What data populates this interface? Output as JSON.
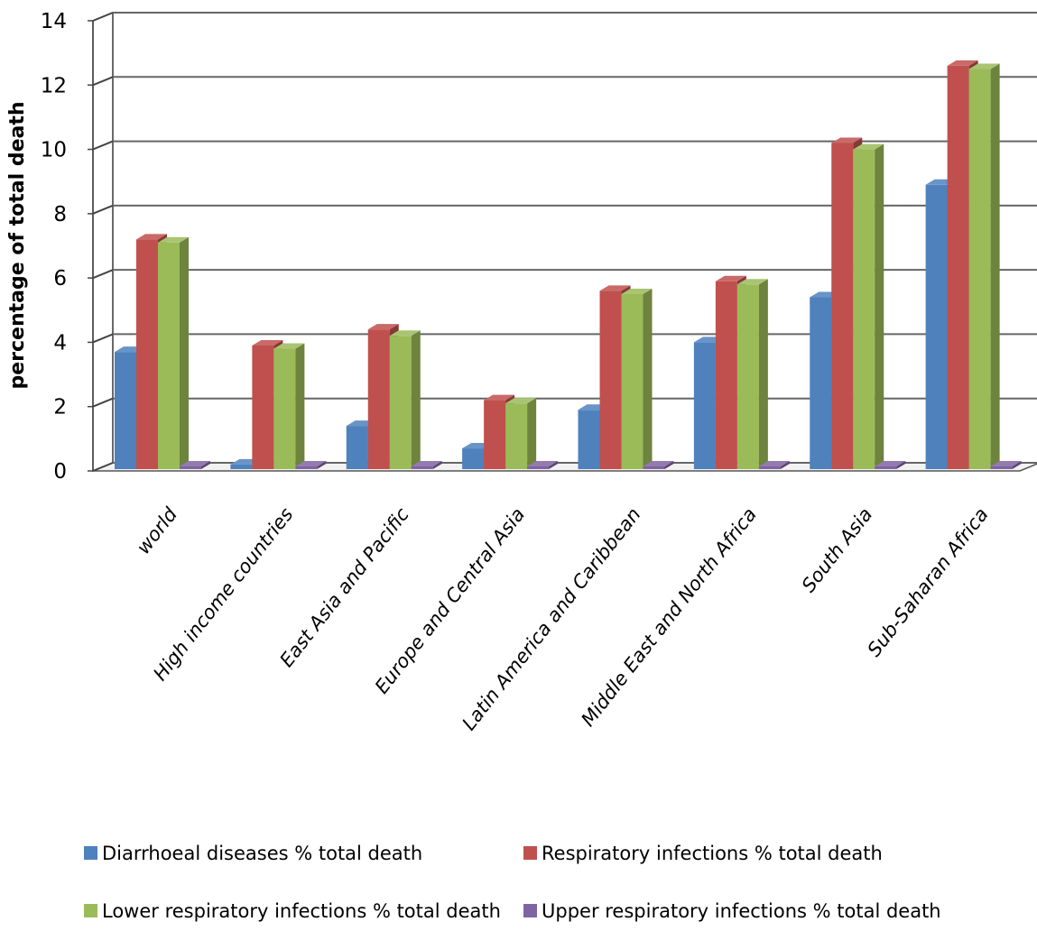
{
  "chart_data": {
    "type": "bar",
    "title": "",
    "xlabel": "",
    "ylabel": "percentage of total death",
    "ylim": [
      0,
      14
    ],
    "yticks": [
      0,
      2,
      4,
      6,
      8,
      10,
      12,
      14
    ],
    "grid": true,
    "legend_position": "bottom",
    "categories": [
      "world",
      "High income countries",
      "East Asia and Pacific",
      "Europe and Central Asia",
      "Latin America and Caribbean",
      "Middle East and North Africa",
      "South Asia",
      "Sub-Saharan Africa"
    ],
    "series": [
      {
        "name": "Diarrhoeal diseases % total death",
        "color": "#4f81bd",
        "values": [
          3.7,
          0.2,
          1.4,
          0.7,
          1.9,
          4.0,
          5.4,
          8.9
        ]
      },
      {
        "name": "Respiratory infections % total death",
        "color": "#c0504d",
        "values": [
          7.2,
          3.9,
          4.4,
          2.2,
          5.6,
          5.9,
          10.2,
          12.6
        ]
      },
      {
        "name": "Lower respiratory infections % total death",
        "color": "#9bbb59",
        "values": [
          7.1,
          3.8,
          4.2,
          2.1,
          5.5,
          5.8,
          10.0,
          12.5
        ]
      },
      {
        "name": "Upper respiratory infections % total death",
        "color": "#8064a2",
        "values": [
          0.1,
          0.1,
          0.1,
          0.1,
          0.1,
          0.1,
          0.1,
          0.1
        ]
      }
    ]
  }
}
